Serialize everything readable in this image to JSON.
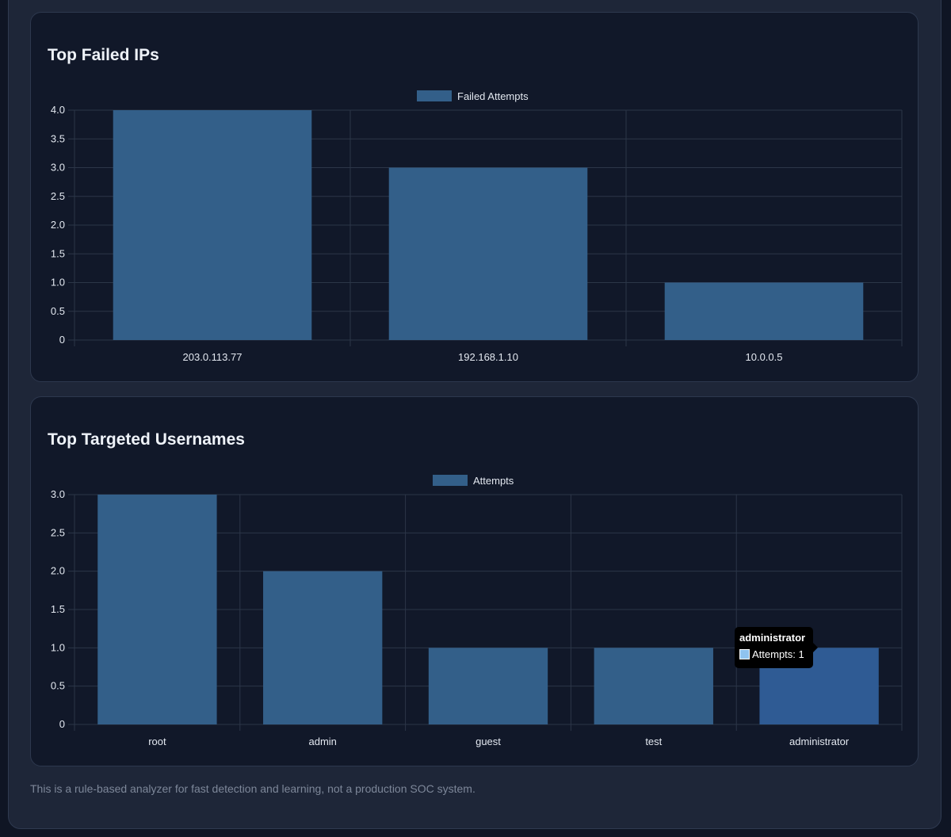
{
  "charts": [
    {
      "title": "Top Failed IPs"
    },
    {
      "title": "Top Targeted Usernames"
    }
  ],
  "chart_data": [
    {
      "type": "bar",
      "title": "Top Failed IPs",
      "categories": [
        "203.0.113.77",
        "192.168.1.10",
        "10.0.0.5"
      ],
      "series": [
        {
          "name": "Failed Attempts",
          "values": [
            4,
            3,
            1
          ]
        }
      ],
      "ylim": [
        0,
        4
      ],
      "yticks": [
        "4.0",
        "3.5",
        "3.0",
        "2.5",
        "2.0",
        "1.5",
        "1.0",
        "0.5",
        "0"
      ],
      "grid": true,
      "legend": "top-center",
      "bar_color": "#335f89",
      "grid_color": "#2c3648"
    },
    {
      "type": "bar",
      "title": "Top Targeted Usernames",
      "categories": [
        "root",
        "admin",
        "guest",
        "test",
        "administrator"
      ],
      "series": [
        {
          "name": "Attempts",
          "values": [
            3,
            2,
            1,
            1,
            1
          ]
        }
      ],
      "ylim": [
        0,
        3
      ],
      "yticks": [
        "3.0",
        "2.5",
        "2.0",
        "1.5",
        "1.0",
        "0.5",
        "0"
      ],
      "grid": true,
      "legend": "top-center",
      "bar_color": "#335f89",
      "highlight_color": "#2f5b94",
      "highlight_index": 4,
      "grid_color": "#2c3648"
    }
  ],
  "tooltip": {
    "title": "administrator",
    "label": "Attempts: 1"
  },
  "footer": {
    "note": "This is a rule-based analyzer for fast detection and learning, not a production SOC system."
  }
}
